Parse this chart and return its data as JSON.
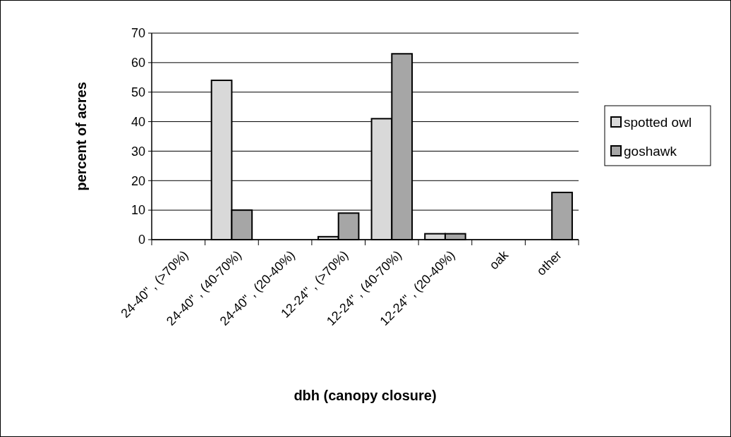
{
  "chart_data": {
    "type": "bar",
    "xlabel": "dbh  (canopy closure)",
    "ylabel": "percent of acres",
    "categories": [
      "24-40\" , (>70%)",
      "24-40\" , (40-70%)",
      "24-40\" , (20-40%)",
      "12-24\" , (>70%)",
      "12-24\" , (40-70%)",
      "12-24\" , (20-40%)",
      "oak",
      "other"
    ],
    "series": [
      {
        "name": "spotted owl",
        "color": "#d9d9d9",
        "values": [
          0,
          54,
          0,
          1,
          41,
          2,
          0,
          0
        ]
      },
      {
        "name": "goshawk",
        "color": "#a6a6a6",
        "values": [
          0,
          10,
          0,
          9,
          63,
          2,
          0,
          16
        ]
      }
    ],
    "ylim": [
      0,
      70
    ],
    "yticks": [
      0,
      10,
      20,
      30,
      40,
      50,
      60,
      70
    ],
    "grid": "y",
    "legend": "right"
  }
}
